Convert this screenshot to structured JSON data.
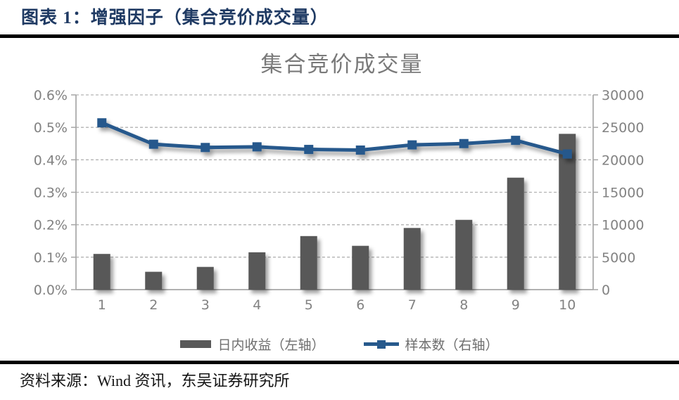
{
  "header": {
    "title": "图表 1：增强因子（集合竞价成交量）"
  },
  "chart_data": {
    "type": "bar",
    "title": "集合竞价成交量",
    "categories": [
      "1",
      "2",
      "3",
      "4",
      "5",
      "6",
      "7",
      "8",
      "9",
      "10"
    ],
    "series": [
      {
        "name": "日内收益（左轴）",
        "type": "bar",
        "axis": "left",
        "color": "#595959",
        "values_percent": [
          0.11,
          0.055,
          0.07,
          0.115,
          0.165,
          0.135,
          0.19,
          0.215,
          0.345,
          0.48
        ]
      },
      {
        "name": "样本数（右轴）",
        "type": "line",
        "axis": "right",
        "color": "#27598c",
        "values": [
          25700,
          22400,
          21900,
          22000,
          21600,
          21500,
          22300,
          22500,
          23000,
          20900
        ]
      }
    ],
    "left_axis": {
      "min": 0,
      "max": 0.6,
      "step": 0.1,
      "tick_labels": [
        "0.0%",
        "0.1%",
        "0.2%",
        "0.3%",
        "0.4%",
        "0.5%",
        "0.6%"
      ]
    },
    "right_axis": {
      "min": 0,
      "max": 30000,
      "step": 5000,
      "tick_labels": [
        "0",
        "5000",
        "10000",
        "15000",
        "20000",
        "25000",
        "30000"
      ]
    },
    "grid": "dashed-horizontal",
    "legend_position": "bottom"
  },
  "footer": {
    "source": "资料来源：Wind 资讯，东吴证券研究所"
  }
}
